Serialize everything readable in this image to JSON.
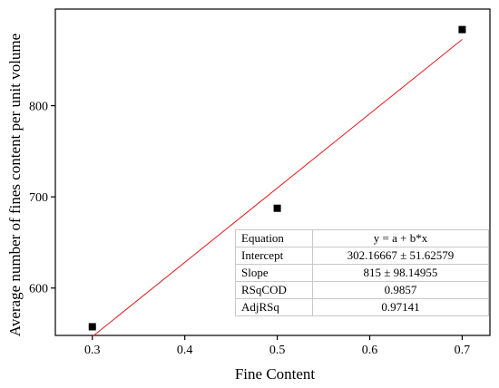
{
  "chart_data": {
    "type": "scatter",
    "title": "",
    "xlabel": "Fine Content",
    "ylabel": "Average number of fines content per unit volume",
    "xlim": [
      0.26,
      0.73
    ],
    "ylim": [
      548,
      906
    ],
    "x_ticks": [
      "0.3",
      "0.4",
      "0.5",
      "0.6",
      "0.7"
    ],
    "y_ticks": [
      "600",
      "700",
      "800"
    ],
    "x_tick_values": [
      0.3,
      0.4,
      0.5,
      0.6,
      0.7
    ],
    "y_tick_values": [
      600,
      700,
      800
    ],
    "grid": false,
    "series": [
      {
        "name": "",
        "marker": "square",
        "color": "#000000",
        "x": [
          0.3,
          0.5,
          0.7
        ],
        "y": [
          557.5,
          687.5,
          883.5
        ]
      }
    ],
    "fit": {
      "type": "line",
      "color": "#e31a1c",
      "intercept": 302.16667,
      "slope": 815,
      "x_range": [
        0.3,
        0.7
      ]
    },
    "fit_table": [
      {
        "key": "Equation",
        "value": "y = a + b*x"
      },
      {
        "key": "Intercept",
        "value": "302.16667 ± 51.62579"
      },
      {
        "key": "Slope",
        "value": "815 ± 98.14955"
      },
      {
        "key": "RSqCOD",
        "value": "0.9857"
      },
      {
        "key": "AdjRSq",
        "value": "0.97141"
      }
    ]
  }
}
